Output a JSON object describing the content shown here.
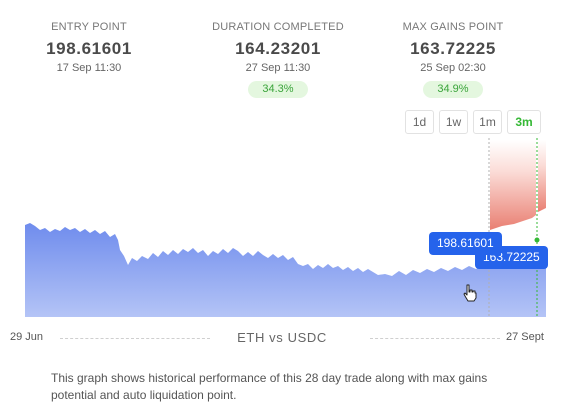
{
  "stats": {
    "entry": {
      "label": "ENTRY POINT",
      "value": "198.61601",
      "time": "17 Sep 11:30"
    },
    "duration": {
      "label": "DURATION COMPLETED",
      "value": "164.23201",
      "time": "27 Sep 11:30",
      "pct": "34.3%"
    },
    "max": {
      "label": "MAX GAINS POINT",
      "value": "163.72225",
      "time": "25 Sep 02:30",
      "pct": "34.9%"
    }
  },
  "ranges": [
    {
      "label": "1d",
      "active": false
    },
    {
      "label": "1w",
      "active": false
    },
    {
      "label": "1m",
      "active": false
    },
    {
      "label": "3m",
      "active": true
    }
  ],
  "chart": {
    "pair": "ETH vs USDC",
    "x_start": "29 Jun",
    "x_end": "27 Sept",
    "tooltip_entry": "198.61601",
    "tooltip_max": "163.72225",
    "colors": {
      "area": "#7b96f0",
      "loss": "#e97f72",
      "gain_marker": "#35b835",
      "tooltip": "#2563eb"
    }
  },
  "description": "This graph shows historical performance of this 28 day trade along with max gains potential and auto liquidation point."
}
